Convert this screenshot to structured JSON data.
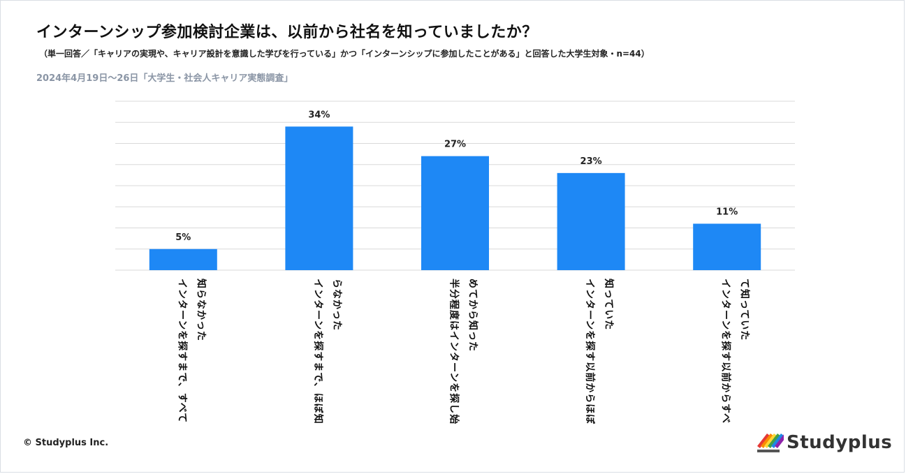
{
  "header": {
    "title": "インターンシップ参加検討企業は、以前から社名を知っていましたか？",
    "subtitle": "（単一回答／「キャリアの実現や、キャリア設計を意識した学びを行っている」かつ「インターンシップに参加したことがある」と回答した大学生対象・n=44）",
    "source": "2024年4月19日〜26日「大学生・社会人キャリア実態調査」"
  },
  "footer": {
    "copyright": "© Studyplus Inc.",
    "logo_text": "Studyplus"
  },
  "colors": {
    "bar": "#1e88f5",
    "grid": "#d9d9d9",
    "logo_stripes": [
      "#e53935",
      "#fb8c00",
      "#fdd835",
      "#43a047",
      "#1e88e5",
      "#8e24aa"
    ]
  },
  "chart_data": {
    "type": "bar",
    "categories": [
      "インターンを探すまで、すべて知らなかった",
      "インターンを探すまで、ほぼ知らなかった",
      "半分程度はインターンを探し始めてから知った",
      "インターンを探す以前からほぼ知っていた",
      "インターンを探す以前からすべて知っていた"
    ],
    "category_label_lines": [
      [
        "インターンを探すまで、すべて",
        "知らなかった"
      ],
      [
        "インターンを探すまで、ほぼ知",
        "らなかった"
      ],
      [
        "半分程度はインターンを探し始",
        "めてから知った"
      ],
      [
        "インターンを探す以前からほぼ",
        "知っていた"
      ],
      [
        "インターンを探す以前からすべ",
        "て知っていた"
      ]
    ],
    "values": [
      5,
      34,
      27,
      23,
      11
    ],
    "data_labels": [
      "5%",
      "34%",
      "27%",
      "23%",
      "11%"
    ],
    "ylim": [
      0,
      40
    ],
    "grid": true,
    "legend": "none"
  }
}
